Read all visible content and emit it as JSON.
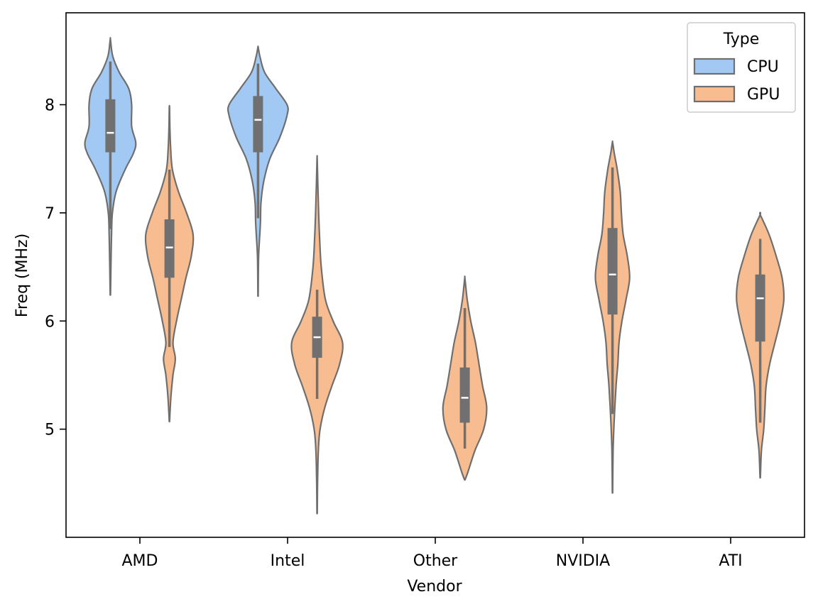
{
  "chart_data": {
    "type": "violin",
    "xlabel": "Vendor",
    "ylabel": "Freq (MHz)",
    "categories": [
      "AMD",
      "Intel",
      "Other",
      "NVIDIA",
      "ATI"
    ],
    "yticks": [
      "5",
      "6",
      "7",
      "8"
    ],
    "ylim": [
      4.0,
      8.85
    ],
    "legend": {
      "title": "Type",
      "position": "top-right",
      "entries": [
        {
          "label": "CPU",
          "color": "#a1c9f4"
        },
        {
          "label": "GPU",
          "color": "#f7bc8f"
        }
      ]
    },
    "colors": {
      "CPU": "#a1c9f4",
      "GPU": "#f7bc8f",
      "outline": "#6f6f6f",
      "box": "#707070",
      "median": "#ffffff"
    },
    "series": [
      {
        "name": "CPU",
        "violins": [
          {
            "category": "AMD",
            "median": 7.74,
            "q1": 7.56,
            "q3": 8.05,
            "whisker_low": 6.85,
            "whisker_high": 8.4,
            "profile": [
              [
                6.24,
                0.005
              ],
              [
                6.5,
                0.02
              ],
              [
                6.8,
                0.04
              ],
              [
                7.0,
                0.07
              ],
              [
                7.2,
                0.2
              ],
              [
                7.4,
                0.5
              ],
              [
                7.55,
                0.78
              ],
              [
                7.65,
                0.86
              ],
              [
                7.8,
                0.72
              ],
              [
                8.0,
                0.72
              ],
              [
                8.15,
                0.62
              ],
              [
                8.3,
                0.3
              ],
              [
                8.45,
                0.08
              ],
              [
                8.6,
                0.005
              ]
            ]
          },
          {
            "category": "Intel",
            "median": 7.86,
            "q1": 7.56,
            "q3": 8.08,
            "whisker_low": 6.95,
            "whisker_high": 8.38,
            "profile": [
              [
                6.23,
                0.005
              ],
              [
                6.6,
                0.02
              ],
              [
                6.9,
                0.08
              ],
              [
                7.1,
                0.1
              ],
              [
                7.3,
                0.2
              ],
              [
                7.5,
                0.4
              ],
              [
                7.7,
                0.74
              ],
              [
                7.9,
                0.98
              ],
              [
                8.0,
                0.98
              ],
              [
                8.15,
                0.6
              ],
              [
                8.3,
                0.22
              ],
              [
                8.45,
                0.06
              ],
              [
                8.53,
                0.005
              ]
            ]
          }
        ]
      },
      {
        "name": "GPU",
        "violins": [
          {
            "category": "AMD",
            "median": 6.68,
            "q1": 6.4,
            "q3": 6.94,
            "whisker_low": 5.76,
            "whisker_high": 7.4,
            "profile": [
              [
                5.07,
                0.005
              ],
              [
                5.3,
                0.05
              ],
              [
                5.5,
                0.12
              ],
              [
                5.65,
                0.2
              ],
              [
                5.8,
                0.12
              ],
              [
                6.0,
                0.24
              ],
              [
                6.2,
                0.4
              ],
              [
                6.4,
                0.56
              ],
              [
                6.6,
                0.74
              ],
              [
                6.8,
                0.8
              ],
              [
                7.0,
                0.58
              ],
              [
                7.2,
                0.3
              ],
              [
                7.4,
                0.1
              ],
              [
                7.6,
                0.04
              ],
              [
                7.8,
                0.015
              ],
              [
                7.97,
                0.005
              ]
            ]
          },
          {
            "category": "Intel",
            "median": 5.85,
            "q1": 5.66,
            "q3": 6.04,
            "whisker_low": 5.28,
            "whisker_high": 6.29,
            "profile": [
              [
                4.22,
                0.005
              ],
              [
                4.5,
                0.015
              ],
              [
                4.8,
                0.04
              ],
              [
                5.0,
                0.1
              ],
              [
                5.2,
                0.26
              ],
              [
                5.4,
                0.5
              ],
              [
                5.6,
                0.76
              ],
              [
                5.8,
                0.86
              ],
              [
                6.0,
                0.54
              ],
              [
                6.2,
                0.28
              ],
              [
                6.5,
                0.14
              ],
              [
                6.8,
                0.08
              ],
              [
                7.1,
                0.04
              ],
              [
                7.48,
                0.005
              ]
            ]
          },
          {
            "category": "Other",
            "median": 5.29,
            "q1": 5.06,
            "q3": 5.57,
            "whisker_low": 4.82,
            "whisker_high": 6.12,
            "profile": [
              [
                4.53,
                0.005
              ],
              [
                4.6,
                0.1
              ],
              [
                4.8,
                0.34
              ],
              [
                5.0,
                0.64
              ],
              [
                5.2,
                0.74
              ],
              [
                5.4,
                0.6
              ],
              [
                5.6,
                0.48
              ],
              [
                5.8,
                0.36
              ],
              [
                6.0,
                0.2
              ],
              [
                6.2,
                0.08
              ],
              [
                6.39,
                0.005
              ]
            ]
          },
          {
            "category": "NVIDIA",
            "median": 6.43,
            "q1": 6.06,
            "q3": 6.86,
            "whisker_low": 5.14,
            "whisker_high": 7.42,
            "profile": [
              [
                4.41,
                0.005
              ],
              [
                4.8,
                0.02
              ],
              [
                5.1,
                0.06
              ],
              [
                5.4,
                0.12
              ],
              [
                5.6,
                0.18
              ],
              [
                5.8,
                0.22
              ],
              [
                6.0,
                0.32
              ],
              [
                6.2,
                0.46
              ],
              [
                6.4,
                0.58
              ],
              [
                6.6,
                0.5
              ],
              [
                6.8,
                0.36
              ],
              [
                7.0,
                0.3
              ],
              [
                7.2,
                0.26
              ],
              [
                7.4,
                0.16
              ],
              [
                7.55,
                0.06
              ],
              [
                7.65,
                0.005
              ]
            ]
          },
          {
            "category": "ATI",
            "median": 6.21,
            "q1": 5.81,
            "q3": 6.43,
            "whisker_low": 5.06,
            "whisker_high": 6.76,
            "profile": [
              [
                4.55,
                0.005
              ],
              [
                4.8,
                0.04
              ],
              [
                5.0,
                0.12
              ],
              [
                5.2,
                0.16
              ],
              [
                5.4,
                0.2
              ],
              [
                5.6,
                0.32
              ],
              [
                5.8,
                0.5
              ],
              [
                6.0,
                0.68
              ],
              [
                6.2,
                0.8
              ],
              [
                6.4,
                0.74
              ],
              [
                6.6,
                0.54
              ],
              [
                6.8,
                0.3
              ],
              [
                6.98,
                0.005
              ]
            ]
          }
        ]
      }
    ]
  }
}
